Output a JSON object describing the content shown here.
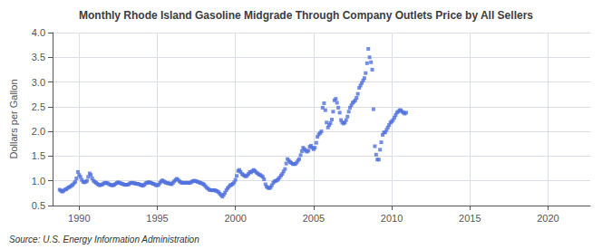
{
  "chart_data": {
    "type": "scatter",
    "title": "Monthly Rhode Island Gasoline Midgrade Through Company Outlets Price by All Sellers",
    "ylabel": "Dollars per Gallon",
    "annotation": "Source: U.S. Energy Information Administration",
    "marker": "square",
    "grid": true,
    "xlim": [
      1988.3,
      2022.7
    ],
    "ylim": [
      0.5,
      4.0
    ],
    "xticks": [
      1990,
      1995,
      2000,
      2005,
      2010,
      2015,
      2020
    ],
    "yticks": [
      0.5,
      {
        "value": 1,
        "label": "1.0"
      },
      1.5,
      {
        "value": 2,
        "label": "2.0"
      },
      2.5,
      {
        "value": 3,
        "label": "3.0"
      },
      3.5,
      {
        "value": 4,
        "label": "4.0"
      }
    ],
    "x": [
      1988.75,
      1988.83,
      1988.92,
      1989,
      1989.08,
      1989.17,
      1989.25,
      1989.33,
      1989.42,
      1989.5,
      1989.58,
      1989.67,
      1989.75,
      1989.83,
      1989.92,
      1990,
      1990.08,
      1990.17,
      1990.25,
      1990.33,
      1990.42,
      1990.5,
      1990.58,
      1990.67,
      1990.75,
      1990.83,
      1990.92,
      1991,
      1991.08,
      1991.17,
      1991.25,
      1991.33,
      1991.42,
      1991.5,
      1991.58,
      1991.67,
      1991.75,
      1991.83,
      1991.92,
      1992,
      1992.08,
      1992.17,
      1992.25,
      1992.33,
      1992.42,
      1992.5,
      1992.58,
      1992.67,
      1992.75,
      1992.83,
      1992.92,
      1993,
      1993.08,
      1993.17,
      1993.25,
      1993.33,
      1993.42,
      1993.5,
      1993.58,
      1993.67,
      1993.75,
      1993.83,
      1993.92,
      1994,
      1994.08,
      1994.17,
      1994.25,
      1994.33,
      1994.42,
      1994.5,
      1994.58,
      1994.67,
      1994.75,
      1994.83,
      1994.92,
      1995,
      1995.08,
      1995.17,
      1995.25,
      1995.33,
      1995.42,
      1995.5,
      1995.58,
      1995.67,
      1995.75,
      1995.83,
      1995.92,
      1996,
      1996.08,
      1996.17,
      1996.25,
      1996.33,
      1996.42,
      1996.5,
      1996.58,
      1996.67,
      1996.75,
      1996.83,
      1996.92,
      1997,
      1997.08,
      1997.17,
      1997.25,
      1997.33,
      1997.42,
      1997.5,
      1997.58,
      1997.67,
      1997.75,
      1997.83,
      1997.92,
      1998,
      1998.08,
      1998.17,
      1998.25,
      1998.33,
      1998.42,
      1998.5,
      1998.58,
      1998.67,
      1998.75,
      1998.83,
      1998.92,
      1999,
      1999.08,
      1999.17,
      1999.25,
      1999.33,
      1999.42,
      1999.5,
      1999.58,
      1999.67,
      1999.75,
      1999.83,
      1999.92,
      2000,
      2000.08,
      2000.17,
      2000.25,
      2000.33,
      2000.42,
      2000.5,
      2000.58,
      2000.67,
      2000.75,
      2000.83,
      2000.92,
      2001,
      2001.08,
      2001.17,
      2001.25,
      2001.33,
      2001.42,
      2001.5,
      2001.58,
      2001.67,
      2001.75,
      2001.83,
      2001.92,
      2002,
      2002.08,
      2002.17,
      2002.25,
      2002.33,
      2002.42,
      2002.5,
      2002.58,
      2002.67,
      2002.75,
      2002.83,
      2002.92,
      2003,
      2003.08,
      2003.17,
      2003.25,
      2003.33,
      2003.42,
      2003.5,
      2003.58,
      2003.67,
      2003.75,
      2003.83,
      2003.92,
      2004,
      2004.08,
      2004.17,
      2004.25,
      2004.33,
      2004.42,
      2004.5,
      2004.58,
      2004.67,
      2004.75,
      2004.83,
      2004.92,
      2005,
      2005.08,
      2005.17,
      2005.25,
      2005.33,
      2005.42,
      2005.5,
      2005.58,
      2005.67,
      2005.75,
      2005.83,
      2005.92,
      2006,
      2006.08,
      2006.17,
      2006.25,
      2006.33,
      2006.42,
      2006.5,
      2006.58,
      2006.67,
      2006.75,
      2006.83,
      2006.92,
      2007,
      2007.08,
      2007.17,
      2007.25,
      2007.33,
      2007.42,
      2007.5,
      2007.58,
      2007.67,
      2007.75,
      2007.83,
      2007.92,
      2008,
      2008.08,
      2008.17,
      2008.25,
      2008.33,
      2008.42,
      2008.5,
      2008.58,
      2008.67,
      2008.75,
      2008.83,
      2008.92,
      2009,
      2009.08,
      2009.17,
      2009.25,
      2009.33,
      2009.42,
      2009.5,
      2009.58,
      2009.67,
      2009.75,
      2009.83,
      2009.92,
      2010,
      2010.08,
      2010.17,
      2010.25,
      2010.33,
      2010.42,
      2010.5,
      2010.58,
      2010.67,
      2010.75,
      2010.83,
      2010.92
    ],
    "values": [
      0.82,
      0.8,
      0.78,
      0.8,
      0.82,
      0.83,
      0.85,
      0.87,
      0.88,
      0.9,
      0.92,
      0.95,
      0.98,
      1.05,
      1.18,
      1.12,
      1.08,
      1.02,
      0.98,
      0.97,
      0.98,
      1.0,
      1.08,
      1.15,
      1.12,
      1.05,
      1.0,
      0.98,
      0.96,
      0.94,
      0.92,
      0.91,
      0.92,
      0.93,
      0.95,
      0.96,
      0.96,
      0.95,
      0.93,
      0.92,
      0.91,
      0.91,
      0.92,
      0.94,
      0.96,
      0.97,
      0.96,
      0.95,
      0.94,
      0.93,
      0.92,
      0.92,
      0.92,
      0.93,
      0.95,
      0.96,
      0.96,
      0.95,
      0.95,
      0.94,
      0.94,
      0.93,
      0.92,
      0.91,
      0.9,
      0.92,
      0.95,
      0.96,
      0.97,
      0.97,
      0.96,
      0.95,
      0.94,
      0.93,
      0.91,
      0.91,
      0.92,
      0.96,
      0.99,
      1.01,
      0.99,
      0.97,
      0.96,
      0.95,
      0.95,
      0.94,
      0.93,
      0.96,
      0.99,
      1.02,
      1.04,
      1.02,
      0.99,
      0.97,
      0.96,
      0.96,
      0.96,
      0.96,
      0.96,
      0.96,
      0.96,
      0.97,
      0.99,
      1.0,
      1.0,
      0.99,
      0.98,
      0.97,
      0.96,
      0.95,
      0.94,
      0.92,
      0.89,
      0.86,
      0.84,
      0.82,
      0.81,
      0.81,
      0.81,
      0.81,
      0.8,
      0.79,
      0.77,
      0.74,
      0.71,
      0.68,
      0.72,
      0.76,
      0.81,
      0.85,
      0.88,
      0.91,
      0.92,
      0.94,
      0.97,
      1.02,
      1.1,
      1.2,
      1.22,
      1.18,
      1.14,
      1.12,
      1.1,
      1.09,
      1.11,
      1.14,
      1.18,
      1.17,
      1.2,
      1.22,
      1.2,
      1.17,
      1.15,
      1.13,
      1.12,
      1.1,
      1.08,
      1.03,
      0.93,
      0.88,
      0.86,
      0.85,
      0.87,
      0.91,
      0.96,
      0.99,
      1.0,
      1.01,
      1.04,
      1.07,
      1.11,
      1.14,
      1.19,
      1.24,
      1.35,
      1.44,
      1.41,
      1.38,
      1.36,
      1.34,
      1.34,
      1.34,
      1.37,
      1.41,
      1.44,
      1.52,
      1.6,
      1.67,
      1.64,
      1.61,
      1.59,
      1.61,
      1.69,
      1.71,
      1.67,
      1.64,
      1.67,
      1.77,
      1.89,
      1.94,
      1.97,
      2.0,
      2.48,
      2.57,
      2.43,
      2.18,
      2.08,
      2.13,
      2.17,
      2.24,
      2.4,
      2.63,
      2.66,
      2.58,
      2.48,
      2.38,
      2.23,
      2.18,
      2.16,
      2.18,
      2.23,
      2.3,
      2.4,
      2.48,
      2.53,
      2.58,
      2.6,
      2.63,
      2.68,
      2.76,
      2.88,
      2.93,
      2.98,
      3.03,
      3.08,
      3.18,
      3.38,
      3.67,
      3.5,
      3.4,
      3.25,
      2.45,
      1.7,
      1.53,
      1.43,
      1.43,
      1.63,
      1.78,
      1.93,
      1.98,
      1.98,
      2.03,
      2.08,
      2.13,
      2.18,
      2.2,
      2.23,
      2.28,
      2.33,
      2.38,
      2.4,
      2.43,
      2.43,
      2.4,
      2.38,
      2.36,
      2.38
    ]
  }
}
